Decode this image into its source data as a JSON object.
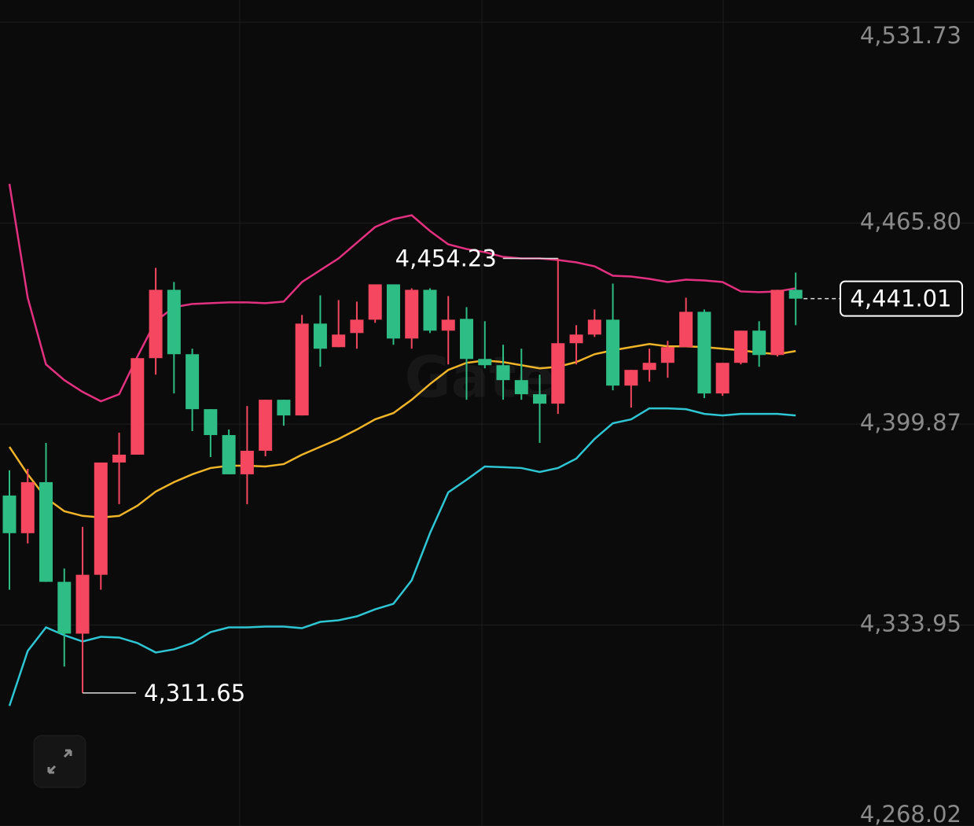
{
  "chart_data": {
    "type": "candlestick",
    "watermark": "Gate",
    "ylim": [
      4268,
      4539
    ],
    "yticks": [
      {
        "value": 4268.02,
        "label": "4,268.02"
      },
      {
        "value": 4333.95,
        "label": "4,333.95"
      },
      {
        "value": 4399.87,
        "label": "4,399.87"
      },
      {
        "value": 4465.8,
        "label": "4,465.80"
      },
      {
        "value": 4531.73,
        "label": "4,531.73"
      }
    ],
    "grid": true,
    "up_color": "#f5475f",
    "down_color": "#2ebd85",
    "open": [
      4376.43,
      4364.07,
      4380.81,
      4348.11,
      4331.11,
      4350.42,
      4387.25,
      4389.83,
      4421.5,
      4443.91,
      4422.79,
      4404.76,
      4396.26,
      4383.39,
      4391.11,
      4407.85,
      4402.7,
      4432.83,
      4425.11,
      4429.74,
      4434.12,
      4445.71,
      4427.94,
      4443.91,
      4430.52,
      4434.38,
      4421.24,
      4419.18,
      4414.29,
      4409.66,
      4406.57,
      4426.4,
      4429.23,
      4434.12,
      4412.49,
      4417.64,
      4419.96,
      4425.11,
      4436.7,
      4409.91,
      4419.96,
      4430.52,
      4422.53,
      4443.91
    ],
    "high": [
      4384.68,
      4385.19,
      4393.69,
      4352.48,
      4366.13,
      4387.25,
      4397.04,
      4421.5,
      4451.12,
      4446.48,
      4424.59,
      4404.76,
      4398.07,
      4405.79,
      4407.85,
      4407.85,
      4435.67,
      4442.1,
      4440.56,
      4440.04,
      4445.71,
      4445.71,
      4444.42,
      4444.42,
      4441.85,
      4438.24,
      4433.61,
      4425.88,
      4424.59,
      4416.09,
      4454.23,
      4432.32,
      4437.47,
      4445.97,
      4417.64,
      4424.59,
      4427.17,
      4441.33,
      4437.47,
      4419.96,
      4430.52,
      4433.61,
      4443.91,
      4449.57
    ],
    "low": [
      4345.53,
      4360.73,
      4348.11,
      4320.29,
      4311.65,
      4345.53,
      4373.6,
      4389.83,
      4416.09,
      4409.91,
      4397.55,
      4389.05,
      4383.39,
      4373.6,
      4389.31,
      4399.35,
      4402.7,
      4418.67,
      4425.11,
      4424.59,
      4433.09,
      4425.88,
      4424.59,
      4429.74,
      4419.44,
      4407.85,
      4418.15,
      4407.85,
      4407.85,
      4393.69,
      4403.22,
      4419.44,
      4428.46,
      4410.94,
      4405.28,
      4413.78,
      4415.06,
      4425.11,
      4408.37,
      4409.14,
      4419.44,
      4418.67,
      4422.02,
      4432.32
    ],
    "close": [
      4364.07,
      4380.81,
      4348.11,
      4331.11,
      4350.42,
      4387.25,
      4389.83,
      4421.5,
      4443.91,
      4422.79,
      4404.76,
      4396.26,
      4383.39,
      4391.11,
      4407.85,
      4402.7,
      4432.83,
      4424.59,
      4429.23,
      4434.12,
      4445.71,
      4427.94,
      4443.91,
      4430.52,
      4434.12,
      4421.24,
      4419.18,
      4414.29,
      4409.66,
      4406.57,
      4426.4,
      4429.23,
      4434.12,
      4412.49,
      4417.64,
      4419.96,
      4425.11,
      4436.7,
      4409.91,
      4419.96,
      4430.52,
      4422.53,
      4443.91,
      4441.01
    ],
    "bands": [
      {
        "color": "#e3307f",
        "values": [
          4478.67,
          4441.33,
          4419.44,
          4414.29,
          4410.43,
          4407.34,
          4409.66,
          4422.02,
          4433.61,
          4438.24,
          4439.27,
          4439.53,
          4439.79,
          4439.79,
          4439.53,
          4440.04,
          4446.48,
          4450.35,
          4454.21,
          4459.36,
          4464.51,
          4467.09,
          4468.37,
          4463.22,
          4458.84,
          4457.3,
          4456.27,
          4454.72,
          4454.21,
          4454.21,
          4453.69,
          4452.92,
          4451.63,
          4448.54,
          4448.29,
          4447.51,
          4446.48,
          4447.26,
          4447.0,
          4446.48,
          4443.39,
          4443.14,
          4443.39,
          4444.42
        ]
      },
      {
        "color": "#f0b429",
        "values": [
          4392.4,
          4383.39,
          4375.66,
          4371.28,
          4369.74,
          4369.22,
          4369.74,
          4373.09,
          4377.72,
          4380.81,
          4383.39,
          4385.45,
          4386.22,
          4386.22,
          4385.96,
          4386.74,
          4389.83,
          4392.4,
          4394.98,
          4398.07,
          4401.42,
          4403.48,
          4407.85,
          4413.0,
          4417.64,
          4419.96,
          4420.73,
          4420.21,
          4419.18,
          4418.15,
          4418.67,
          4420.21,
          4422.79,
          4424.08,
          4425.11,
          4426.14,
          4425.37,
          4425.37,
          4425.11,
          4424.59,
          4424.08,
          4423.31,
          4422.79,
          4423.82
        ]
      },
      {
        "color": "#2fc6d4",
        "values": [
          4307.42,
          4325.44,
          4333.17,
          4330.59,
          4328.53,
          4330.08,
          4329.82,
          4328.02,
          4324.93,
          4325.96,
          4328.02,
          4331.62,
          4333.17,
          4333.17,
          4333.43,
          4333.43,
          4332.91,
          4334.97,
          4335.49,
          4336.78,
          4339.09,
          4340.9,
          4348.62,
          4364.07,
          4377.46,
          4381.59,
          4385.96,
          4385.71,
          4385.45,
          4384.16,
          4385.45,
          4388.54,
          4394.98,
          4400.13,
          4401.42,
          4405.02,
          4405.02,
          4404.76,
          4403.22,
          4402.7,
          4403.22,
          4403.22,
          4403.22,
          4402.7
        ]
      }
    ],
    "annotations": [
      {
        "kind": "max",
        "index": 30,
        "value": 4454.23,
        "label": "4,454.23"
      },
      {
        "kind": "min",
        "index": 4,
        "value": 4311.65,
        "label": "4,311.65"
      },
      {
        "kind": "last",
        "index": 43,
        "value": 4441.01,
        "label": "4,441.01"
      }
    ]
  }
}
